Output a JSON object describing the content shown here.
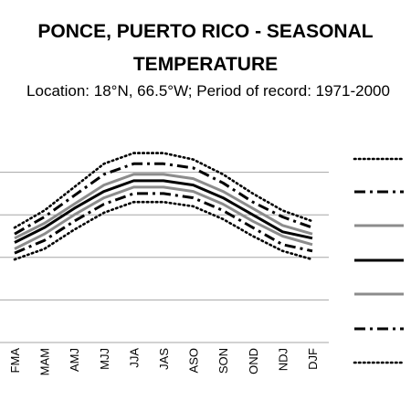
{
  "title_lines": [
    "PONCE, PUERTO RICO - SEASONAL",
    "TEMPERATURE"
  ],
  "subtitle": "Location: 18°N, 66.5°W; Period of record: 1971-2000",
  "chart_data": {
    "type": "line",
    "categories": [
      "FMA",
      "MAM",
      "AMJ",
      "MJJ",
      "JJA",
      "JAS",
      "ASO",
      "SON",
      "OND",
      "NDJ",
      "DJF"
    ],
    "grid": true,
    "legend_position": "right",
    "series": [
      {
        "style": "dotted-black",
        "values": [
          5.4,
          6.2,
          7.3,
          8.4,
          8.9,
          8.9,
          8.6,
          7.9,
          7.0,
          6.2,
          5.7
        ]
      },
      {
        "style": "dashdot-black",
        "values": [
          5.1,
          5.9,
          6.9,
          7.9,
          8.4,
          8.4,
          8.2,
          7.5,
          6.6,
          5.9,
          5.4
        ]
      },
      {
        "style": "solid-gray",
        "values": [
          4.9,
          5.6,
          6.5,
          7.4,
          7.9,
          7.9,
          7.7,
          7.1,
          6.3,
          5.5,
          5.1
        ]
      },
      {
        "style": "solid-black",
        "values": [
          4.7,
          5.4,
          6.3,
          7.1,
          7.6,
          7.6,
          7.4,
          6.8,
          6.0,
          5.2,
          4.9
        ]
      },
      {
        "style": "solid-gray",
        "values": [
          4.4,
          5.1,
          6.0,
          6.8,
          7.3,
          7.3,
          7.1,
          6.5,
          5.7,
          5.0,
          4.6
        ]
      },
      {
        "style": "dashdot-black",
        "values": [
          4.2,
          4.8,
          5.7,
          6.5,
          7.0,
          7.0,
          6.8,
          6.2,
          5.4,
          4.6,
          4.3
        ]
      },
      {
        "style": "dotted-black",
        "values": [
          3.9,
          4.4,
          5.3,
          6.1,
          6.6,
          6.6,
          6.4,
          5.8,
          5.0,
          4.3,
          3.9
        ]
      }
    ],
    "ylim": [
      0,
      10
    ]
  },
  "colors": {
    "black": "#000000",
    "gray": "#8c8c8c",
    "grid": "#a6a6a6"
  }
}
